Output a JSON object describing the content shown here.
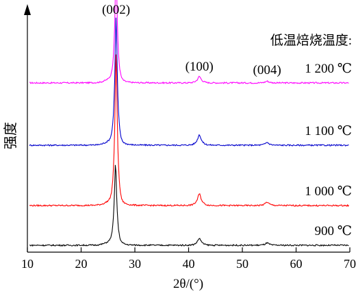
{
  "chart_data": {
    "type": "line",
    "title": "",
    "xlabel": "2θ/(°)",
    "ylabel": "强度",
    "xlim": [
      10,
      70
    ],
    "x_ticks": [
      "10",
      "20",
      "30",
      "40",
      "50",
      "60",
      "70"
    ],
    "grid": false,
    "legend_title": "低温焙烧温度:",
    "peak_labels": [
      "(002)",
      "(100)",
      "(004)"
    ],
    "peak_positions": [
      26.5,
      42.0,
      54.6
    ],
    "series": [
      {
        "name": "1 200 ℃",
        "color": "#ff00ff",
        "baseline": 3,
        "peaks": [
          {
            "x": 26.5,
            "height": 9.4
          },
          {
            "x": 42.0,
            "height": 0.55
          },
          {
            "x": 54.6,
            "height": 0.15
          }
        ]
      },
      {
        "name": "1 100 ℃",
        "color": "#0000cc",
        "baseline": 2,
        "peaks": [
          {
            "x": 26.5,
            "height": 10.8
          },
          {
            "x": 42.0,
            "height": 0.9
          },
          {
            "x": 54.6,
            "height": 0.25
          }
        ]
      },
      {
        "name": "1 000 ℃",
        "color": "#ff0000",
        "baseline": 1,
        "peaks": [
          {
            "x": 26.5,
            "height": 12.8
          },
          {
            "x": 42.0,
            "height": 1.0
          },
          {
            "x": 54.6,
            "height": 0.3
          }
        ]
      },
      {
        "name": "900 ℃",
        "color": "#000000",
        "baseline": 0,
        "peaks": [
          {
            "x": 26.4,
            "height": 6.8
          },
          {
            "x": 42.0,
            "height": 0.6
          },
          {
            "x": 54.6,
            "height": 0.2
          }
        ]
      }
    ]
  }
}
